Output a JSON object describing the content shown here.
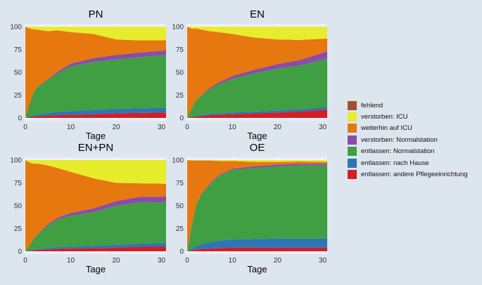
{
  "colors": {
    "fehlend": "#a0522d",
    "verstorben_icu": "#e7ec2c",
    "weiterhin_icu": "#e6780f",
    "verstorben_normal": "#8a4bab",
    "entlassen_normal": "#3f9f42",
    "entlassen_hause": "#2f74b5",
    "entlassen_pflege": "#d21f26"
  },
  "legend": {
    "items": [
      {
        "label": "fehlend",
        "color": "#a0522d"
      },
      {
        "label": "verstorben: ICU",
        "color": "#e7ec2c"
      },
      {
        "label": "weiterhin auf ICU",
        "color": "#e6780f"
      },
      {
        "label": "verstorben: Normalstation",
        "color": "#8a4bab"
      },
      {
        "label": "entlassen: Normalstation",
        "color": "#3f9f42"
      },
      {
        "label": "entlassen: nach Hause",
        "color": "#2f74b5"
      },
      {
        "label": "entlassen: andere Pflegeeinrichtung",
        "color": "#d21f26"
      }
    ]
  },
  "chart_data": [
    {
      "type": "area",
      "title": "PN",
      "xlabel": "Tage",
      "ylabel": "",
      "xlim": [
        0,
        31
      ],
      "ylim": [
        0,
        100
      ],
      "x_ticks": [
        "0",
        "10",
        "20",
        "30"
      ],
      "y_ticks": [
        "0",
        "25",
        "50",
        "75",
        "100"
      ],
      "stack_order": [
        "entlassen: andere Pflegeeinrichtung",
        "entlassen: nach Hause",
        "entlassen: Normalstation",
        "verstorben: Normalstation",
        "weiterhin auf ICU",
        "verstorben: ICU",
        "fehlend"
      ],
      "x": [
        0,
        1,
        2,
        3,
        5,
        7,
        10,
        15,
        20,
        25,
        31
      ],
      "series": [
        {
          "name": "entlassen: andere Pflegeeinrichtung",
          "values": [
            0,
            1,
            1.5,
            2,
            2.5,
            3,
            3.5,
            4,
            5,
            5.5,
            6
          ]
        },
        {
          "name": "entlassen: nach Hause",
          "values": [
            0,
            1,
            1.5,
            2,
            3,
            3.5,
            4,
            4.5,
            5,
            5,
            5
          ]
        },
        {
          "name": "entlassen: Normalstation",
          "values": [
            0,
            15,
            27,
            31,
            36,
            42,
            49,
            53,
            54,
            56,
            58
          ]
        },
        {
          "name": "verstorben: Normalstation",
          "values": [
            0,
            0,
            0,
            0.5,
            1,
            2,
            3,
            4,
            5,
            5,
            5
          ]
        },
        {
          "name": "weiterhin auf ICU",
          "values": [
            100,
            81,
            67,
            61,
            52.5,
            45.5,
            34.5,
            26.5,
            17,
            13.5,
            11
          ]
        },
        {
          "name": "verstorben: ICU",
          "values": [
            0,
            2,
            3,
            3.5,
            5,
            4,
            6,
            8,
            14,
            15,
            15
          ]
        },
        {
          "name": "fehlend",
          "values": [
            0,
            0,
            0,
            0,
            0,
            0,
            0,
            0,
            0,
            0,
            0
          ]
        }
      ]
    },
    {
      "type": "area",
      "title": "EN",
      "xlabel": "Tage",
      "ylabel": "",
      "xlim": [
        0,
        31
      ],
      "ylim": [
        0,
        100
      ],
      "x_ticks": [
        "0",
        "10",
        "20",
        "30"
      ],
      "y_ticks": [
        "0",
        "25",
        "50",
        "75",
        "100"
      ],
      "stack_order": [
        "entlassen: andere Pflegeeinrichtung",
        "entlassen: nach Hause",
        "entlassen: Normalstation",
        "verstorben: Normalstation",
        "weiterhin auf ICU",
        "verstorben: ICU",
        "fehlend"
      ],
      "x": [
        0,
        1,
        2,
        3,
        5,
        7,
        10,
        15,
        20,
        25,
        31
      ],
      "series": [
        {
          "name": "entlassen: andere Pflegeeinrichtung",
          "values": [
            0,
            1,
            1.5,
            2,
            3,
            3.5,
            4,
            5,
            6,
            7,
            9
          ]
        },
        {
          "name": "entlassen: nach Hause",
          "values": [
            0,
            0.5,
            1,
            1,
            1.5,
            1.5,
            2,
            2,
            2,
            2.5,
            3
          ]
        },
        {
          "name": "entlassen: Normalstation",
          "values": [
            0,
            9,
            17,
            21,
            27,
            32,
            37,
            42,
            46,
            48,
            53
          ]
        },
        {
          "name": "verstorben: Normalstation",
          "values": [
            0,
            0,
            0,
            0.5,
            1.5,
            2,
            3,
            4,
            5,
            6,
            8
          ]
        },
        {
          "name": "weiterhin auf ICU",
          "values": [
            100,
            87.5,
            78.5,
            72.5,
            62,
            55,
            46,
            35,
            27,
            22,
            14
          ]
        },
        {
          "name": "verstorben: ICU",
          "values": [
            0,
            2,
            2,
            3,
            5,
            6,
            8,
            12,
            14,
            14.5,
            13
          ]
        },
        {
          "name": "fehlend",
          "values": [
            0,
            0,
            0,
            0,
            0,
            0,
            0,
            0,
            0,
            0,
            0
          ]
        }
      ]
    },
    {
      "type": "area",
      "title": "EN+PN",
      "xlabel": "Tage",
      "ylabel": "",
      "xlim": [
        0,
        31
      ],
      "ylim": [
        0,
        100
      ],
      "x_ticks": [
        "0",
        "10",
        "20",
        "30"
      ],
      "y_ticks": [
        "0",
        "25",
        "50",
        "75",
        "100"
      ],
      "stack_order": [
        "entlassen: andere Pflegeeinrichtung",
        "entlassen: nach Hause",
        "entlassen: Normalstation",
        "verstorben: Normalstation",
        "weiterhin auf ICU",
        "verstorben: ICU",
        "fehlend"
      ],
      "x": [
        0,
        1,
        2,
        3,
        5,
        7,
        10,
        15,
        20,
        25,
        31
      ],
      "series": [
        {
          "name": "entlassen: andere Pflegeeinrichtung",
          "values": [
            0,
            0.5,
            1,
            1.5,
            2,
            2.5,
            3,
            3.5,
            4,
            5,
            5
          ]
        },
        {
          "name": "entlassen: nach Hause",
          "values": [
            0,
            0.5,
            1,
            1,
            1.5,
            2,
            2,
            2.5,
            3,
            3.5,
            4
          ]
        },
        {
          "name": "entlassen: Normalstation",
          "values": [
            0,
            6,
            13,
            17,
            25,
            30,
            34,
            37,
            43,
            45,
            45
          ]
        },
        {
          "name": "verstorben: Normalstation",
          "values": [
            0,
            0,
            0,
            0.5,
            1.5,
            2,
            3,
            4,
            5,
            6,
            6
          ]
        },
        {
          "name": "weiterhin auf ICU",
          "values": [
            100,
            90,
            81,
            76,
            64,
            55,
            45,
            33,
            20,
            15,
            14
          ]
        },
        {
          "name": "verstorben: ICU",
          "values": [
            0,
            3,
            4,
            4,
            6,
            8.5,
            13,
            20,
            25,
            25.5,
            26
          ]
        },
        {
          "name": "fehlend",
          "values": [
            0,
            0,
            0,
            0,
            0,
            0,
            0,
            0,
            0,
            0,
            0
          ]
        }
      ]
    },
    {
      "type": "area",
      "title": "OE",
      "xlabel": "Tage",
      "ylabel": "",
      "xlim": [
        0,
        31
      ],
      "ylim": [
        0,
        100
      ],
      "x_ticks": [
        "0",
        "10",
        "20",
        "30"
      ],
      "y_ticks": [
        "0",
        "25",
        "50",
        "75",
        "100"
      ],
      "stack_order": [
        "entlassen: andere Pflegeeinrichtung",
        "entlassen: nach Hause",
        "entlassen: Normalstation",
        "verstorben: Normalstation",
        "weiterhin auf ICU",
        "verstorben: ICU",
        "fehlend"
      ],
      "x": [
        0,
        1,
        2,
        3,
        5,
        7,
        10,
        15,
        20,
        25,
        31
      ],
      "series": [
        {
          "name": "entlassen: andere Pflegeeinrichtung",
          "values": [
            0,
            1,
            2,
            2.5,
            3,
            3.5,
            4,
            4,
            4,
            4,
            4
          ]
        },
        {
          "name": "entlassen: nach Hause",
          "values": [
            0,
            2,
            4,
            5,
            7,
            8,
            9,
            9.5,
            10,
            10,
            10
          ]
        },
        {
          "name": "entlassen: Normalstation",
          "values": [
            0,
            25,
            45,
            54,
            63,
            71,
            76,
            78,
            79,
            80,
            80
          ]
        },
        {
          "name": "verstorben: Normalstation",
          "values": [
            0,
            0,
            0,
            0.5,
            1,
            1,
            1.5,
            2,
            2,
            2,
            2
          ]
        },
        {
          "name": "weiterhin auf ICU",
          "values": [
            100,
            71.5,
            48.5,
            37.5,
            25.5,
            15.5,
            8.5,
            4.5,
            3,
            2.5,
            2
          ]
        },
        {
          "name": "verstorben: ICU",
          "values": [
            0,
            0.5,
            0.5,
            0.5,
            0.5,
            1,
            1,
            2,
            2,
            1.5,
            2
          ]
        },
        {
          "name": "fehlend",
          "values": [
            0,
            0,
            0,
            0,
            0,
            0,
            0,
            0,
            0,
            0,
            0
          ]
        }
      ]
    }
  ]
}
